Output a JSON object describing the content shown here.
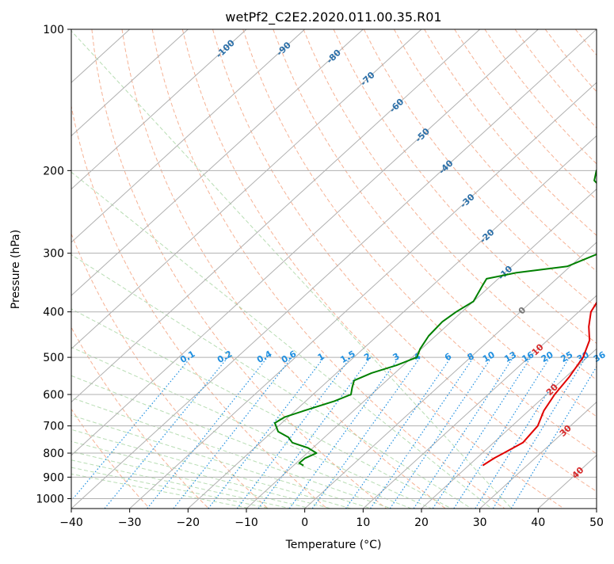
{
  "chart_data": {
    "type": "line",
    "title": "wetPf2_C2E2.2020.011.00.35.R01",
    "xlabel": "Temperature (°C)",
    "ylabel": "Pressure (hPa)",
    "xlim": [
      -40,
      50
    ],
    "ylim": [
      1050,
      100
    ],
    "y_scale": "log",
    "x_ticks": [
      "−40",
      "−30",
      "−20",
      "−10",
      "0",
      "10",
      "20",
      "30",
      "40",
      "50"
    ],
    "y_ticks": [
      "100",
      "200",
      "300",
      "400",
      "500",
      "600",
      "700",
      "800",
      "900",
      "1000"
    ],
    "grid": true,
    "colors": {
      "temperature": "#e00000",
      "dewpoint": "#008000",
      "dry_adiabat": "#f4a582",
      "moist_adiabat": "#a6d5a0",
      "isotherm_label": "#2b6fa8",
      "mixing_ratio": "#1f8fe0",
      "isotherm_label_warm": "#d62728",
      "grid": "#b0b0b0"
    },
    "series": [
      {
        "key": "temperature",
        "pressure": [
          850,
          820,
          790,
          760,
          700,
          650,
          600,
          550,
          500,
          460,
          430,
          400,
          370,
          340,
          320,
          300,
          280,
          260,
          240,
          220,
          200,
          185,
          170,
          155,
          140,
          130,
          125,
          118,
          112,
          105,
          100
        ],
        "values": [
          22.4,
          23.0,
          24.0,
          25.0,
          24.4,
          22.6,
          21.4,
          20.6,
          19.3,
          17.2,
          14.5,
          12.1,
          10.8,
          10.4,
          9.6,
          8.6,
          7.2,
          5.8,
          4.4,
          4.0,
          5.4,
          5.7,
          4.8,
          3.7,
          2.7,
          2.6,
          3.9,
          6.1,
          6.9,
          7.2,
          7.1
        ]
      },
      {
        "key": "dewpoint",
        "pressure": [
          850,
          840,
          820,
          800,
          780,
          760,
          740,
          720,
          690,
          670,
          650,
          620,
          600,
          580,
          560,
          540,
          520,
          500,
          480,
          450,
          420,
          400,
          380,
          350,
          340,
          330,
          320,
          300,
          280,
          260,
          240,
          225,
          210,
          200,
          190,
          180,
          170,
          160,
          150,
          140,
          130,
          120,
          110,
          100
        ],
        "values": [
          -8.3,
          -9.5,
          -9.4,
          -8.4,
          -10.8,
          -14.5,
          -16.2,
          -19.0,
          -21.2,
          -20.6,
          -18.5,
          -15.1,
          -13.5,
          -14.6,
          -15.6,
          -14.0,
          -11.2,
          -9.2,
          -10.2,
          -11.2,
          -11.5,
          -11.0,
          -10.0,
          -11.5,
          -12.0,
          -8.0,
          -0.5,
          2.5,
          2.4,
          0.5,
          -3.0,
          -7.0,
          -12.0,
          -13.5,
          -12.3,
          -10.8,
          -10.2,
          -10.0,
          -9.2,
          -8.2,
          -7.4,
          -6.7,
          -5.5,
          -4.8
        ]
      }
    ],
    "isotherm_labels": [
      "-100",
      "-90",
      "-80",
      "-70",
      "-60",
      "-50",
      "-40",
      "-30",
      "-20",
      "-10",
      "0",
      "10",
      "20",
      "30",
      "40"
    ],
    "mixing_ratio_labels": [
      "0.1",
      "0.2",
      "0.4",
      "0.6",
      "1",
      "1.5",
      "2",
      "3",
      "4",
      "6",
      "8",
      "10",
      "13",
      "16",
      "20",
      "25",
      "30",
      "36"
    ]
  }
}
